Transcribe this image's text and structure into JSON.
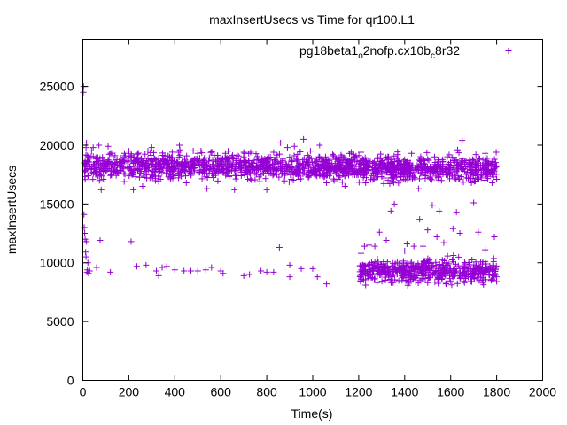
{
  "chart_data": {
    "type": "scatter",
    "title": "maxInsertUsecs vs Time for qr100.L1",
    "xlabel": "Time(s)",
    "ylabel": "maxInsertUsecs",
    "xlim": [
      0,
      2000
    ],
    "ylim": [
      0,
      29000
    ],
    "xticks": [
      0,
      200,
      400,
      600,
      800,
      1000,
      1200,
      1400,
      1600,
      1800,
      2000
    ],
    "yticks": [
      0,
      5000,
      10000,
      15000,
      20000,
      25000
    ],
    "grid": false,
    "legend_position": "top-right",
    "marker": "+",
    "color": "#9400d3",
    "series": [
      {
        "name": "pg18beta1_o2nofp.cx10b_c8r32",
        "legend_parts": [
          {
            "text": "pg18beta1",
            "shift": "base"
          },
          {
            "text": "o",
            "shift": "sub"
          },
          {
            "text": "2nofp.cx10b",
            "shift": "base"
          },
          {
            "text": "c",
            "shift": "sub"
          },
          {
            "text": "8r32",
            "shift": "base"
          }
        ],
        "points": [
          [
            2,
            24500
          ],
          [
            3,
            25000
          ],
          [
            5,
            14100
          ],
          [
            6,
            13000
          ],
          [
            8,
            12500
          ],
          [
            10,
            12000
          ],
          [
            12,
            10900
          ],
          [
            14,
            10500
          ],
          [
            16,
            11800
          ],
          [
            18,
            9200
          ],
          [
            20,
            9400
          ],
          [
            22,
            10000
          ],
          [
            25,
            9100
          ],
          [
            30,
            9300
          ],
          [
            60,
            9600
          ],
          [
            75,
            11900
          ],
          [
            120,
            9200
          ],
          [
            210,
            11800
          ],
          [
            235,
            9700
          ],
          [
            275,
            9800
          ],
          [
            320,
            9300
          ],
          [
            330,
            8900
          ],
          [
            345,
            9600
          ],
          [
            365,
            9700
          ],
          [
            400,
            9400
          ],
          [
            440,
            9300
          ],
          [
            470,
            9300
          ],
          [
            500,
            9300
          ],
          [
            535,
            9400
          ],
          [
            560,
            9600
          ],
          [
            600,
            9300
          ],
          [
            610,
            9100
          ],
          [
            700,
            8900
          ],
          [
            725,
            9000
          ],
          [
            775,
            9300
          ],
          [
            800,
            9200
          ],
          [
            830,
            9200
          ],
          [
            855,
            11300
          ],
          [
            900,
            8800
          ],
          [
            900,
            9800
          ],
          [
            950,
            9500
          ],
          [
            1000,
            9500
          ],
          [
            1020,
            8800
          ],
          [
            1060,
            8200
          ],
          [
            16,
            20200
          ],
          [
            14,
            19800
          ],
          [
            30,
            18900
          ],
          [
            45,
            19800
          ],
          [
            60,
            17600
          ],
          [
            70,
            20000
          ],
          [
            80,
            16200
          ],
          [
            110,
            19900
          ],
          [
            140,
            19100
          ],
          [
            180,
            16900
          ],
          [
            200,
            19500
          ],
          [
            220,
            16200
          ],
          [
            240,
            19300
          ],
          [
            260,
            16500
          ],
          [
            300,
            19800
          ],
          [
            330,
            16900
          ],
          [
            370,
            18500
          ],
          [
            420,
            20000
          ],
          [
            450,
            16800
          ],
          [
            500,
            19300
          ],
          [
            540,
            16300
          ],
          [
            580,
            18600
          ],
          [
            620,
            19300
          ],
          [
            660,
            16200
          ],
          [
            700,
            19400
          ],
          [
            730,
            19400
          ],
          [
            770,
            16900
          ],
          [
            800,
            16200
          ],
          [
            830,
            19400
          ],
          [
            860,
            20200
          ],
          [
            890,
            19800
          ],
          [
            920,
            19900
          ],
          [
            940,
            17100
          ],
          [
            960,
            20500
          ],
          [
            990,
            19500
          ],
          [
            1030,
            20000
          ],
          [
            1060,
            16800
          ],
          [
            1090,
            19100
          ],
          [
            1110,
            19000
          ],
          [
            1140,
            16500
          ],
          [
            1180,
            18900
          ],
          [
            1210,
            19400
          ],
          [
            1230,
            16800
          ],
          [
            1250,
            18600
          ],
          [
            1300,
            17600
          ],
          [
            1330,
            19000
          ],
          [
            1370,
            19200
          ],
          [
            1400,
            17500
          ],
          [
            1430,
            19300
          ],
          [
            1460,
            16300
          ],
          [
            1500,
            18800
          ],
          [
            1530,
            19000
          ],
          [
            1560,
            17000
          ],
          [
            1600,
            18300
          ],
          [
            1630,
            19600
          ],
          [
            1650,
            20400
          ],
          [
            1690,
            16800
          ],
          [
            1720,
            18300
          ],
          [
            1750,
            19300
          ],
          [
            1780,
            16800
          ],
          [
            1798,
            19400
          ],
          [
            1800,
            17100
          ],
          [
            1210,
            10800
          ],
          [
            1225,
            11400
          ],
          [
            1245,
            11500
          ],
          [
            1270,
            11400
          ],
          [
            1290,
            12600
          ],
          [
            1320,
            11900
          ],
          [
            1340,
            14400
          ],
          [
            1355,
            15000
          ],
          [
            1400,
            11000
          ],
          [
            1410,
            11600
          ],
          [
            1440,
            11400
          ],
          [
            1465,
            13700
          ],
          [
            1480,
            11400
          ],
          [
            1500,
            12800
          ],
          [
            1520,
            14900
          ],
          [
            1540,
            12200
          ],
          [
            1550,
            14400
          ],
          [
            1570,
            11700
          ],
          [
            1610,
            12900
          ],
          [
            1625,
            14300
          ],
          [
            1640,
            12500
          ],
          [
            1700,
            15100
          ],
          [
            1720,
            12600
          ],
          [
            1750,
            11100
          ],
          [
            1790,
            12200
          ],
          [
            1210,
            8700
          ],
          [
            1230,
            8100
          ],
          [
            1280,
            8300
          ],
          [
            1350,
            8300
          ],
          [
            1420,
            8400
          ],
          [
            1500,
            8300
          ],
          [
            1580,
            8200
          ],
          [
            1660,
            8300
          ],
          [
            1740,
            8300
          ],
          [
            1800,
            8400
          ]
        ]
      }
    ],
    "dense_bands": [
      {
        "x_range": [
          5,
          1195
        ],
        "y_center": 18200,
        "y_spread": 1300,
        "count": 1050
      },
      {
        "x_range": [
          1195,
          1800
        ],
        "y_center": 18000,
        "y_spread": 1200,
        "count": 560
      },
      {
        "x_range": [
          1205,
          1800
        ],
        "y_center": 9300,
        "y_spread": 1150,
        "count": 520
      }
    ]
  }
}
